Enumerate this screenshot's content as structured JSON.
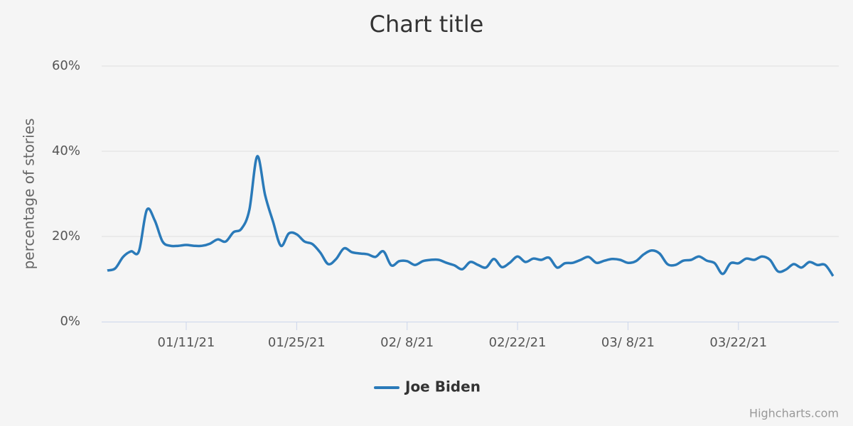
{
  "chart_data": {
    "type": "line",
    "title": "Chart title",
    "y_axis_label": "percentage of stories",
    "credits": "Highcharts.com",
    "x": [
      "01/01/21",
      "01/02/21",
      "01/03/21",
      "01/04/21",
      "01/05/21",
      "01/06/21",
      "01/07/21",
      "01/08/21",
      "01/09/21",
      "01/10/21",
      "01/11/21",
      "01/12/21",
      "01/13/21",
      "01/14/21",
      "01/15/21",
      "01/16/21",
      "01/17/21",
      "01/18/21",
      "01/19/21",
      "01/20/21",
      "01/21/21",
      "01/22/21",
      "01/23/21",
      "01/24/21",
      "01/25/21",
      "01/26/21",
      "01/27/21",
      "01/28/21",
      "01/29/21",
      "01/30/21",
      "01/31/21",
      "02/01/21",
      "02/02/21",
      "02/03/21",
      "02/04/21",
      "02/05/21",
      "02/06/21",
      "02/07/21",
      "02/08/21",
      "02/09/21",
      "02/10/21",
      "02/11/21",
      "02/12/21",
      "02/13/21",
      "02/14/21",
      "02/15/21",
      "02/16/21",
      "02/17/21",
      "02/18/21",
      "02/19/21",
      "02/20/21",
      "02/21/21",
      "02/22/21",
      "02/23/21",
      "02/24/21",
      "02/25/21",
      "02/26/21",
      "02/27/21",
      "02/28/21",
      "03/01/21",
      "03/02/21",
      "03/03/21",
      "03/04/21",
      "03/05/21",
      "03/06/21",
      "03/07/21",
      "03/08/21",
      "03/09/21",
      "03/10/21",
      "03/11/21",
      "03/12/21",
      "03/13/21",
      "03/14/21",
      "03/15/21",
      "03/16/21",
      "03/17/21",
      "03/18/21",
      "03/19/21",
      "03/20/21",
      "03/21/21",
      "03/22/21",
      "03/23/21",
      "03/24/21",
      "03/25/21",
      "03/26/21",
      "03/27/21",
      "03/28/21",
      "03/29/21",
      "03/30/21",
      "03/31/21",
      "04/01/21",
      "04/02/21",
      "04/03/21"
    ],
    "series": [
      {
        "name": "Joe Biden",
        "color": "#2a7ab9",
        "values": [
          12.0,
          12.5,
          15.2,
          16.5,
          16.5,
          26.2,
          23.8,
          18.8,
          17.8,
          17.8,
          18.0,
          17.8,
          17.8,
          18.3,
          19.3,
          18.8,
          21.0,
          21.8,
          26.2,
          38.8,
          29.7,
          23.5,
          17.8,
          20.7,
          20.5,
          18.8,
          18.2,
          16.2,
          13.5,
          14.7,
          17.2,
          16.3,
          16.0,
          15.8,
          15.2,
          16.5,
          13.2,
          14.2,
          14.2,
          13.3,
          14.2,
          14.5,
          14.5,
          13.8,
          13.2,
          12.3,
          14.0,
          13.3,
          12.7,
          14.7,
          12.8,
          13.8,
          15.3,
          14.0,
          14.8,
          14.5,
          15.0,
          12.7,
          13.7,
          13.8,
          14.5,
          15.2,
          13.8,
          14.3,
          14.7,
          14.5,
          13.8,
          14.2,
          15.8,
          16.7,
          16.0,
          13.5,
          13.3,
          14.3,
          14.5,
          15.3,
          14.3,
          13.7,
          11.2,
          13.7,
          13.7,
          14.8,
          14.5,
          15.3,
          14.5,
          11.8,
          12.2,
          13.5,
          12.7,
          14.0,
          13.3,
          13.3,
          10.7
        ]
      }
    ],
    "xticks": [
      "01/11/21",
      "01/25/21",
      {
        "value": "02/08/21",
        "label": "02/ 8/21"
      },
      "02/22/21",
      {
        "value": "03/08/21",
        "label": "03/ 8/21"
      },
      "03/22/21"
    ],
    "ylim": [
      0,
      60
    ],
    "yticks": [
      {
        "value": 0,
        "label": "0%"
      },
      {
        "value": 20,
        "label": "20%"
      },
      {
        "value": 40,
        "label": "40%"
      },
      {
        "value": 60,
        "label": "60%"
      }
    ],
    "grid": true,
    "legend": "bottom"
  }
}
